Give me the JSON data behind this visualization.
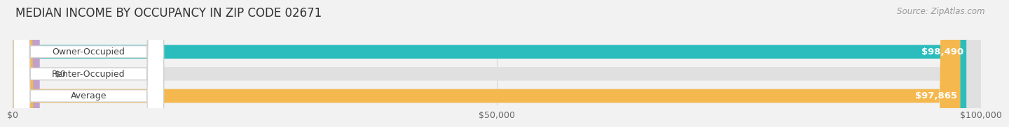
{
  "title": "MEDIAN INCOME BY OCCUPANCY IN ZIP CODE 02671",
  "source": "Source: ZipAtlas.com",
  "categories": [
    "Owner-Occupied",
    "Renter-Occupied",
    "Average"
  ],
  "values": [
    98490,
    0,
    97865
  ],
  "bar_colors": [
    "#2bbdbd",
    "#c0a0cc",
    "#f5b84e"
  ],
  "label_values": [
    "$98,490",
    "$0",
    "$97,865"
  ],
  "xlim": [
    0,
    100000
  ],
  "xticks": [
    0,
    50000,
    100000
  ],
  "xtick_labels": [
    "$0",
    "$50,000",
    "$100,000"
  ],
  "bg_color": "#f2f2f2",
  "bar_bg_color": "#e0e0e0",
  "bar_height": 0.62,
  "label_bg_color": "#ffffff",
  "title_fontsize": 12,
  "source_fontsize": 8.5,
  "tick_fontsize": 9,
  "bar_label_fontsize": 9.5
}
